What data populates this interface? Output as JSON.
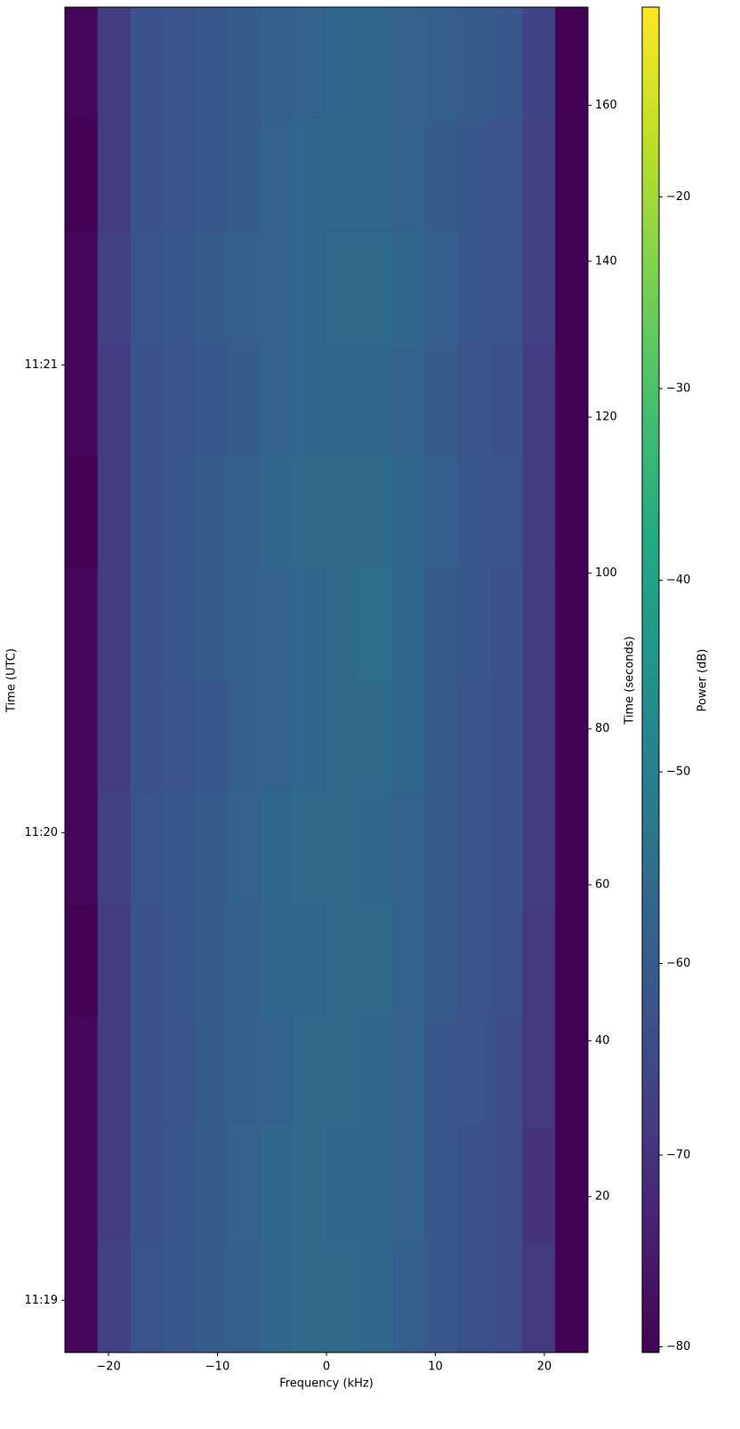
{
  "chart_data": {
    "type": "heatmap",
    "x_label": "Frequency (kHz)",
    "y_label": "Time (seconds)",
    "y2_label": "Time (UTC)",
    "colorbar_label": "Power (dB)",
    "colormap": "viridis",
    "xlim": [
      -24,
      24
    ],
    "xticks": [
      {
        "value": -20,
        "label": "−20"
      },
      {
        "value": -10,
        "label": "−10"
      },
      0,
      10,
      20
    ],
    "ylim": [
      0,
      172.6
    ],
    "yticks": [
      20,
      40,
      60,
      80,
      100,
      120,
      140,
      160
    ],
    "y2lim": [
      0,
      172.6
    ],
    "y2ticks": [
      {
        "value": 6.7,
        "label": "11:19"
      },
      {
        "value": 66.7,
        "label": "11:20"
      },
      {
        "value": 126.7,
        "label": "11:21"
      }
    ],
    "clim": [
      -80.3,
      -10.1
    ],
    "cticks": [
      {
        "value": -80,
        "label": "−80"
      },
      {
        "value": -70,
        "label": "−70"
      },
      {
        "value": -60,
        "label": "−60"
      },
      {
        "value": -50,
        "label": "−50"
      },
      {
        "value": -40,
        "label": "−40"
      },
      {
        "value": -30,
        "label": "−30"
      },
      {
        "value": -20,
        "label": "−20"
      }
    ],
    "xbins": [
      -24,
      -21,
      -18,
      -15,
      -12,
      -9,
      -6,
      -3,
      0,
      3,
      6,
      9,
      12,
      15,
      18,
      21,
      24
    ],
    "ybins": [
      0,
      14.4,
      28.8,
      43.2,
      57.5,
      71.9,
      86.3,
      100.7,
      115.1,
      129.5,
      143.8,
      158.2,
      172.6
    ],
    "z": [
      [
        -79,
        -67,
        -62,
        -61,
        -60,
        -59,
        -57,
        -56,
        -56,
        -57,
        -59,
        -61,
        -63,
        -64,
        -69,
        -80
      ],
      [
        -79,
        -68,
        -63,
        -61,
        -60,
        -58,
        -57,
        -56,
        -57,
        -57,
        -58,
        -61,
        -63,
        -64,
        -70,
        -80
      ],
      [
        -79,
        -68,
        -63,
        -62,
        -60,
        -59,
        -58,
        -56,
        -56,
        -57,
        -58,
        -61,
        -62,
        -64,
        -69,
        -80
      ],
      [
        -80,
        -68,
        -63,
        -61,
        -60,
        -59,
        -57,
        -57,
        -56,
        -56,
        -58,
        -60,
        -62,
        -63,
        -69,
        -80
      ],
      [
        -79,
        -67,
        -62,
        -61,
        -60,
        -58,
        -57,
        -56,
        -56,
        -57,
        -58,
        -60,
        -62,
        -63,
        -68,
        -80
      ],
      [
        -79,
        -68,
        -63,
        -62,
        -61,
        -59,
        -58,
        -57,
        -56,
        -56,
        -57,
        -60,
        -62,
        -63,
        -68,
        -80
      ],
      [
        -79,
        -68,
        -63,
        -61,
        -60,
        -59,
        -58,
        -57,
        -56,
        -55,
        -57,
        -60,
        -61,
        -63,
        -68,
        -80
      ],
      [
        -80,
        -68,
        -63,
        -61,
        -60,
        -59,
        -57,
        -56,
        -56,
        -56,
        -57,
        -59,
        -61,
        -62,
        -68,
        -80
      ],
      [
        -79,
        -68,
        -63,
        -62,
        -61,
        -60,
        -58,
        -57,
        -57,
        -57,
        -58,
        -60,
        -62,
        -63,
        -68,
        -80
      ],
      [
        -79,
        -67,
        -62,
        -61,
        -60,
        -59,
        -58,
        -57,
        -56,
        -56,
        -57,
        -59,
        -61,
        -62,
        -67,
        -80
      ],
      [
        -80,
        -68,
        -63,
        -62,
        -61,
        -60,
        -58,
        -57,
        -57,
        -57,
        -58,
        -60,
        -61,
        -62,
        -67,
        -80
      ],
      [
        -79,
        -68,
        -63,
        -62,
        -61,
        -60,
        -59,
        -58,
        -57,
        -57,
        -58,
        -59,
        -60,
        -61,
        -66,
        -80
      ]
    ]
  }
}
